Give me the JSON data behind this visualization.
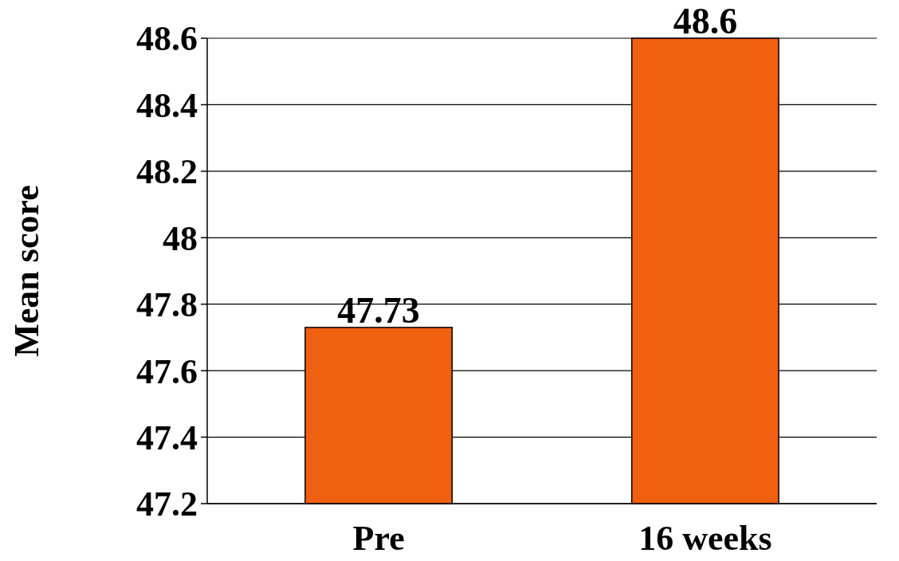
{
  "chart_data": {
    "type": "bar",
    "ylabel": "Mean score",
    "categories": [
      "Pre",
      "16 weeks"
    ],
    "values": [
      47.73,
      48.6
    ],
    "color": "#f06010",
    "ylim": [
      47.2,
      48.6
    ],
    "yticks": [
      47.2,
      47.4,
      47.6,
      47.8,
      48,
      48.2,
      48.4,
      48.6
    ],
    "grid": "y",
    "data_labels": true
  }
}
